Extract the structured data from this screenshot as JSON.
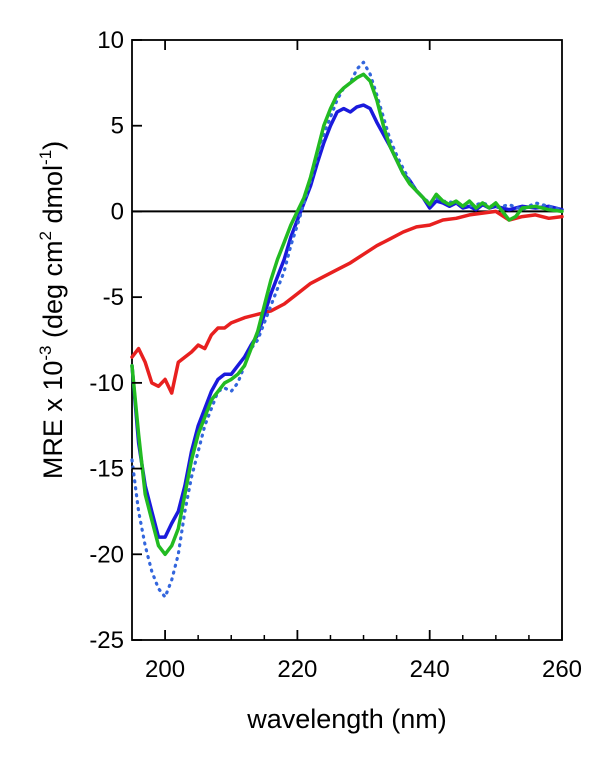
{
  "chart_data": {
    "type": "line",
    "title": "",
    "xlabel": "wavelength (nm)",
    "ylabel": {
      "main": "MRE x 10",
      "exp1": "-3",
      "open": " (deg cm",
      "exp2": "2",
      "mid": " dmol",
      "exp3": "-1",
      "close": ")"
    },
    "xlim": [
      195,
      260
    ],
    "ylim": [
      -25,
      10
    ],
    "xticks": [
      200,
      220,
      240,
      260
    ],
    "xtick_labels": [
      "200",
      "220",
      "240",
      "260"
    ],
    "yticks": [
      10,
      5,
      0,
      -5,
      -10,
      -15,
      -20,
      -25
    ],
    "ytick_labels": [
      "10",
      "5",
      "0",
      "-5",
      "-10",
      "-15",
      "-20",
      "-25"
    ],
    "grid": false,
    "legend": "none",
    "zero_line": 0,
    "series": [
      {
        "color": "#e8201f",
        "style": "solid",
        "points": [
          [
            195,
            -8.5
          ],
          [
            196,
            -8
          ],
          [
            197,
            -8.8
          ],
          [
            198,
            -10
          ],
          [
            199,
            -10.2
          ],
          [
            200,
            -9.8
          ],
          [
            201,
            -10.6
          ],
          [
            202,
            -8.8
          ],
          [
            203,
            -8.5
          ],
          [
            204,
            -8.2
          ],
          [
            205,
            -7.8
          ],
          [
            206,
            -8
          ],
          [
            207,
            -7.2
          ],
          [
            208,
            -6.8
          ],
          [
            209,
            -6.8
          ],
          [
            210,
            -6.5
          ],
          [
            212,
            -6.2
          ],
          [
            214,
            -6
          ],
          [
            216,
            -5.8
          ],
          [
            218,
            -5.4
          ],
          [
            220,
            -4.8
          ],
          [
            222,
            -4.2
          ],
          [
            224,
            -3.8
          ],
          [
            226,
            -3.4
          ],
          [
            228,
            -3
          ],
          [
            230,
            -2.5
          ],
          [
            232,
            -2
          ],
          [
            234,
            -1.6
          ],
          [
            236,
            -1.2
          ],
          [
            238,
            -0.9
          ],
          [
            240,
            -0.8
          ],
          [
            242,
            -0.5
          ],
          [
            244,
            -0.4
          ],
          [
            246,
            -0.2
          ],
          [
            248,
            -0.1
          ],
          [
            250,
            0
          ],
          [
            252,
            -0.5
          ],
          [
            254,
            -0.3
          ],
          [
            256,
            -0.2
          ],
          [
            258,
            -0.4
          ],
          [
            260,
            -0.3
          ]
        ]
      },
      {
        "color": "#1a1adc",
        "style": "solid",
        "points": [
          [
            195,
            -9
          ],
          [
            196,
            -13.5
          ],
          [
            197,
            -16
          ],
          [
            198,
            -17.5
          ],
          [
            199,
            -19
          ],
          [
            200,
            -19
          ],
          [
            201,
            -18.2
          ],
          [
            202,
            -17.5
          ],
          [
            203,
            -16
          ],
          [
            204,
            -14
          ],
          [
            205,
            -12.5
          ],
          [
            206,
            -11.5
          ],
          [
            207,
            -10.5
          ],
          [
            208,
            -9.8
          ],
          [
            209,
            -9.5
          ],
          [
            210,
            -9.5
          ],
          [
            211,
            -9
          ],
          [
            212,
            -8.5
          ],
          [
            213,
            -7.8
          ],
          [
            214,
            -7.2
          ],
          [
            215,
            -6
          ],
          [
            216,
            -4.8
          ],
          [
            217,
            -3.8
          ],
          [
            218,
            -2.8
          ],
          [
            219,
            -1.5
          ],
          [
            220,
            -0.5
          ],
          [
            221,
            0.5
          ],
          [
            222,
            1.5
          ],
          [
            223,
            2.8
          ],
          [
            224,
            4
          ],
          [
            225,
            5
          ],
          [
            226,
            5.8
          ],
          [
            227,
            6
          ],
          [
            228,
            5.8
          ],
          [
            229,
            6.1
          ],
          [
            230,
            6.2
          ],
          [
            231,
            6
          ],
          [
            232,
            5.2
          ],
          [
            233,
            4.5
          ],
          [
            234,
            3.8
          ],
          [
            235,
            3
          ],
          [
            236,
            2.2
          ],
          [
            237,
            1.8
          ],
          [
            238,
            1.2
          ],
          [
            239,
            0.8
          ],
          [
            240,
            0.2
          ],
          [
            241,
            0.6
          ],
          [
            242,
            0.5
          ],
          [
            243,
            0.3
          ],
          [
            244,
            0.5
          ],
          [
            245,
            0.2
          ],
          [
            246,
            0.3
          ],
          [
            247,
            0.1
          ],
          [
            248,
            0.4
          ],
          [
            249,
            0.2
          ],
          [
            250,
            0.3
          ],
          [
            252,
            0.1
          ],
          [
            254,
            0.3
          ],
          [
            256,
            0.2
          ],
          [
            258,
            0.3
          ],
          [
            260,
            0.1
          ]
        ]
      },
      {
        "color": "#3366dd",
        "style": "dotted",
        "points": [
          [
            195,
            -14.5
          ],
          [
            196,
            -17.5
          ],
          [
            197,
            -19.5
          ],
          [
            198,
            -21
          ],
          [
            199,
            -22
          ],
          [
            200,
            -22.5
          ],
          [
            201,
            -21.5
          ],
          [
            202,
            -20
          ],
          [
            203,
            -17.5
          ],
          [
            204,
            -15.5
          ],
          [
            205,
            -14
          ],
          [
            206,
            -12.5
          ],
          [
            207,
            -11.5
          ],
          [
            208,
            -10.5
          ],
          [
            209,
            -10.3
          ],
          [
            210,
            -10.5
          ],
          [
            211,
            -10
          ],
          [
            212,
            -9
          ],
          [
            213,
            -8
          ],
          [
            214,
            -7.5
          ],
          [
            215,
            -6.5
          ],
          [
            216,
            -5.5
          ],
          [
            217,
            -4.5
          ],
          [
            218,
            -3.5
          ],
          [
            219,
            -2
          ],
          [
            220,
            -0.8
          ],
          [
            221,
            0.5
          ],
          [
            222,
            1.8
          ],
          [
            223,
            3.2
          ],
          [
            224,
            4.5
          ],
          [
            225,
            5.5
          ],
          [
            226,
            6.5
          ],
          [
            227,
            7.2
          ],
          [
            228,
            7.5
          ],
          [
            229,
            8.3
          ],
          [
            230,
            8.7
          ],
          [
            231,
            8
          ],
          [
            232,
            6.8
          ],
          [
            233,
            5.5
          ],
          [
            234,
            4.2
          ],
          [
            235,
            3.3
          ],
          [
            236,
            2.5
          ],
          [
            237,
            1.8
          ],
          [
            238,
            1.2
          ],
          [
            239,
            0.8
          ],
          [
            240,
            0.5
          ],
          [
            241,
            0.8
          ],
          [
            242,
            0.6
          ],
          [
            244,
            0.5
          ],
          [
            246,
            0.3
          ],
          [
            248,
            0.5
          ],
          [
            250,
            0.2
          ],
          [
            252,
            0.4
          ],
          [
            254,
            0.1
          ],
          [
            256,
            0.5
          ],
          [
            258,
            0.3
          ],
          [
            260,
            0.1
          ]
        ]
      },
      {
        "color": "#22bb22",
        "style": "solid",
        "points": [
          [
            195,
            -9
          ],
          [
            196,
            -13
          ],
          [
            197,
            -16.5
          ],
          [
            198,
            -18
          ],
          [
            199,
            -19.5
          ],
          [
            200,
            -20
          ],
          [
            201,
            -19.5
          ],
          [
            202,
            -18.5
          ],
          [
            203,
            -16.5
          ],
          [
            204,
            -14.5
          ],
          [
            205,
            -13
          ],
          [
            206,
            -12
          ],
          [
            207,
            -11
          ],
          [
            208,
            -10.5
          ],
          [
            209,
            -10
          ],
          [
            210,
            -9.8
          ],
          [
            211,
            -9.5
          ],
          [
            212,
            -9
          ],
          [
            213,
            -8
          ],
          [
            214,
            -7
          ],
          [
            215,
            -5.5
          ],
          [
            216,
            -4
          ],
          [
            217,
            -2.8
          ],
          [
            218,
            -1.8
          ],
          [
            219,
            -0.8
          ],
          [
            220,
            0
          ],
          [
            221,
            0.8
          ],
          [
            222,
            2
          ],
          [
            223,
            3.5
          ],
          [
            224,
            5
          ],
          [
            225,
            6
          ],
          [
            226,
            6.8
          ],
          [
            227,
            7.2
          ],
          [
            228,
            7.5
          ],
          [
            229,
            7.8
          ],
          [
            230,
            8
          ],
          [
            231,
            7.6
          ],
          [
            232,
            6.5
          ],
          [
            233,
            5
          ],
          [
            234,
            3.8
          ],
          [
            235,
            3
          ],
          [
            236,
            2.2
          ],
          [
            237,
            1.6
          ],
          [
            238,
            1.2
          ],
          [
            239,
            0.8
          ],
          [
            240,
            0.4
          ],
          [
            241,
            1
          ],
          [
            242,
            0.6
          ],
          [
            243,
            0.4
          ],
          [
            244,
            0.6
          ],
          [
            245,
            0.3
          ],
          [
            246,
            0.6
          ],
          [
            247,
            0.2
          ],
          [
            248,
            0.5
          ],
          [
            249,
            0.2
          ],
          [
            250,
            0.5
          ],
          [
            251,
            0
          ],
          [
            252,
            -0.5
          ],
          [
            253,
            -0.3
          ],
          [
            254,
            0.2
          ],
          [
            256,
            0.3
          ],
          [
            258,
            0.1
          ],
          [
            260,
            0
          ]
        ]
      }
    ]
  }
}
